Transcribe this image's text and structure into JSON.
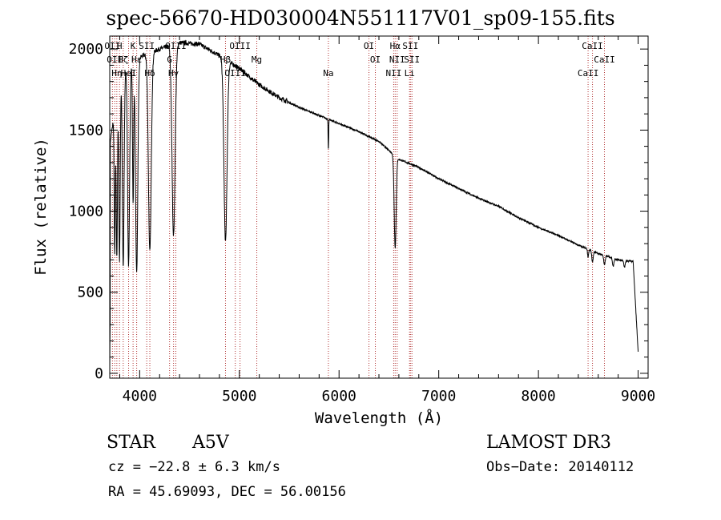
{
  "chart_data": {
    "type": "line",
    "title": "spec-56670-HD030004N551117V01_sp09-155.fits",
    "xlabel": "Wavelength (Å)",
    "ylabel": "Flux (relative)",
    "xlim": [
      3700,
      9100
    ],
    "ylim": [
      -30,
      2080
    ],
    "xticks": [
      4000,
      5000,
      6000,
      7000,
      8000,
      9000
    ],
    "yticks": [
      0,
      500,
      1000,
      1500,
      2000
    ],
    "line_markers": [
      {
        "wl": 3727,
        "label": "OII"
      },
      {
        "wl": 3750,
        "label": "OII"
      },
      {
        "wl": 3771,
        "label": "Hη"
      },
      {
        "wl": 3798,
        "label": "H"
      },
      {
        "wl": 3835,
        "label": "Hζ"
      },
      {
        "wl": 3889,
        "label": "HeI"
      },
      {
        "wl": 3934,
        "label": "K"
      },
      {
        "wl": 3970,
        "label": "Hε"
      },
      {
        "wl": 4102,
        "label": "Hδ"
      },
      {
        "wl": 4071,
        "label": "SII"
      },
      {
        "wl": 4300,
        "label": "G"
      },
      {
        "wl": 4340,
        "label": "Hγ"
      },
      {
        "wl": 4363,
        "label": "OIII"
      },
      {
        "wl": 4861,
        "label": "Hβ"
      },
      {
        "wl": 4959,
        "label": "OIII"
      },
      {
        "wl": 5007,
        "label": "OIII"
      },
      {
        "wl": 5175,
        "label": "Mg"
      },
      {
        "wl": 5893,
        "label": "Na"
      },
      {
        "wl": 6300,
        "label": "OI"
      },
      {
        "wl": 6364,
        "label": "OI"
      },
      {
        "wl": 6548,
        "label": "NII"
      },
      {
        "wl": 6563,
        "label": "Hα"
      },
      {
        "wl": 6583,
        "label": "NII"
      },
      {
        "wl": 6707,
        "label": "Li"
      },
      {
        "wl": 6716,
        "label": "SII"
      },
      {
        "wl": 6731,
        "label": "SII"
      },
      {
        "wl": 8498,
        "label": "CaII"
      },
      {
        "wl": 8542,
        "label": "CaII"
      },
      {
        "wl": 8662,
        "label": "CaII"
      }
    ],
    "continuum": [
      [
        3700,
        1400
      ],
      [
        3800,
        1850
      ],
      [
        4000,
        1950
      ],
      [
        4200,
        2000
      ],
      [
        4400,
        2040
      ],
      [
        4600,
        2030
      ],
      [
        4800,
        1960
      ],
      [
        5000,
        1880
      ],
      [
        5200,
        1780
      ],
      [
        5400,
        1700
      ],
      [
        5600,
        1640
      ],
      [
        5800,
        1590
      ],
      [
        6000,
        1540
      ],
      [
        6200,
        1490
      ],
      [
        6400,
        1430
      ],
      [
        6600,
        1320
      ],
      [
        6800,
        1270
      ],
      [
        7000,
        1200
      ],
      [
        7200,
        1140
      ],
      [
        7400,
        1080
      ],
      [
        7600,
        1030
      ],
      [
        7800,
        960
      ],
      [
        8000,
        900
      ],
      [
        8200,
        850
      ],
      [
        8400,
        790
      ],
      [
        8600,
        740
      ],
      [
        8800,
        700
      ],
      [
        8950,
        690
      ],
      [
        9000,
        130
      ]
    ],
    "absorption_lines": [
      {
        "wl": 3750,
        "depth": 0.55,
        "width": 8
      },
      {
        "wl": 3771,
        "depth": 0.58,
        "width": 9
      },
      {
        "wl": 3798,
        "depth": 0.62,
        "width": 10
      },
      {
        "wl": 3835,
        "depth": 0.65,
        "width": 12
      },
      {
        "wl": 3889,
        "depth": 0.65,
        "width": 14
      },
      {
        "wl": 3934,
        "depth": 0.45,
        "width": 8
      },
      {
        "wl": 3970,
        "depth": 0.68,
        "width": 16
      },
      {
        "wl": 4102,
        "depth": 0.62,
        "width": 20
      },
      {
        "wl": 4340,
        "depth": 0.58,
        "width": 22
      },
      {
        "wl": 4861,
        "depth": 0.58,
        "width": 22
      },
      {
        "wl": 5893,
        "depth": 0.12,
        "width": 4
      },
      {
        "wl": 6563,
        "depth": 0.42,
        "width": 14
      },
      {
        "wl": 8498,
        "depth": 0.06,
        "width": 8
      },
      {
        "wl": 8542,
        "depth": 0.09,
        "width": 10
      },
      {
        "wl": 8662,
        "depth": 0.08,
        "width": 10
      },
      {
        "wl": 8750,
        "depth": 0.07,
        "width": 10
      },
      {
        "wl": 8863,
        "depth": 0.06,
        "width": 10
      }
    ]
  },
  "info": {
    "class": "STAR",
    "subclass": "A5V",
    "survey": "LAMOST DR3",
    "cz": "cz = −22.8 ± 6.3 km/s",
    "obs_date": "Obs−Date: 20140112",
    "radec": "RA =  45.69093, DEC =  56.00156"
  }
}
